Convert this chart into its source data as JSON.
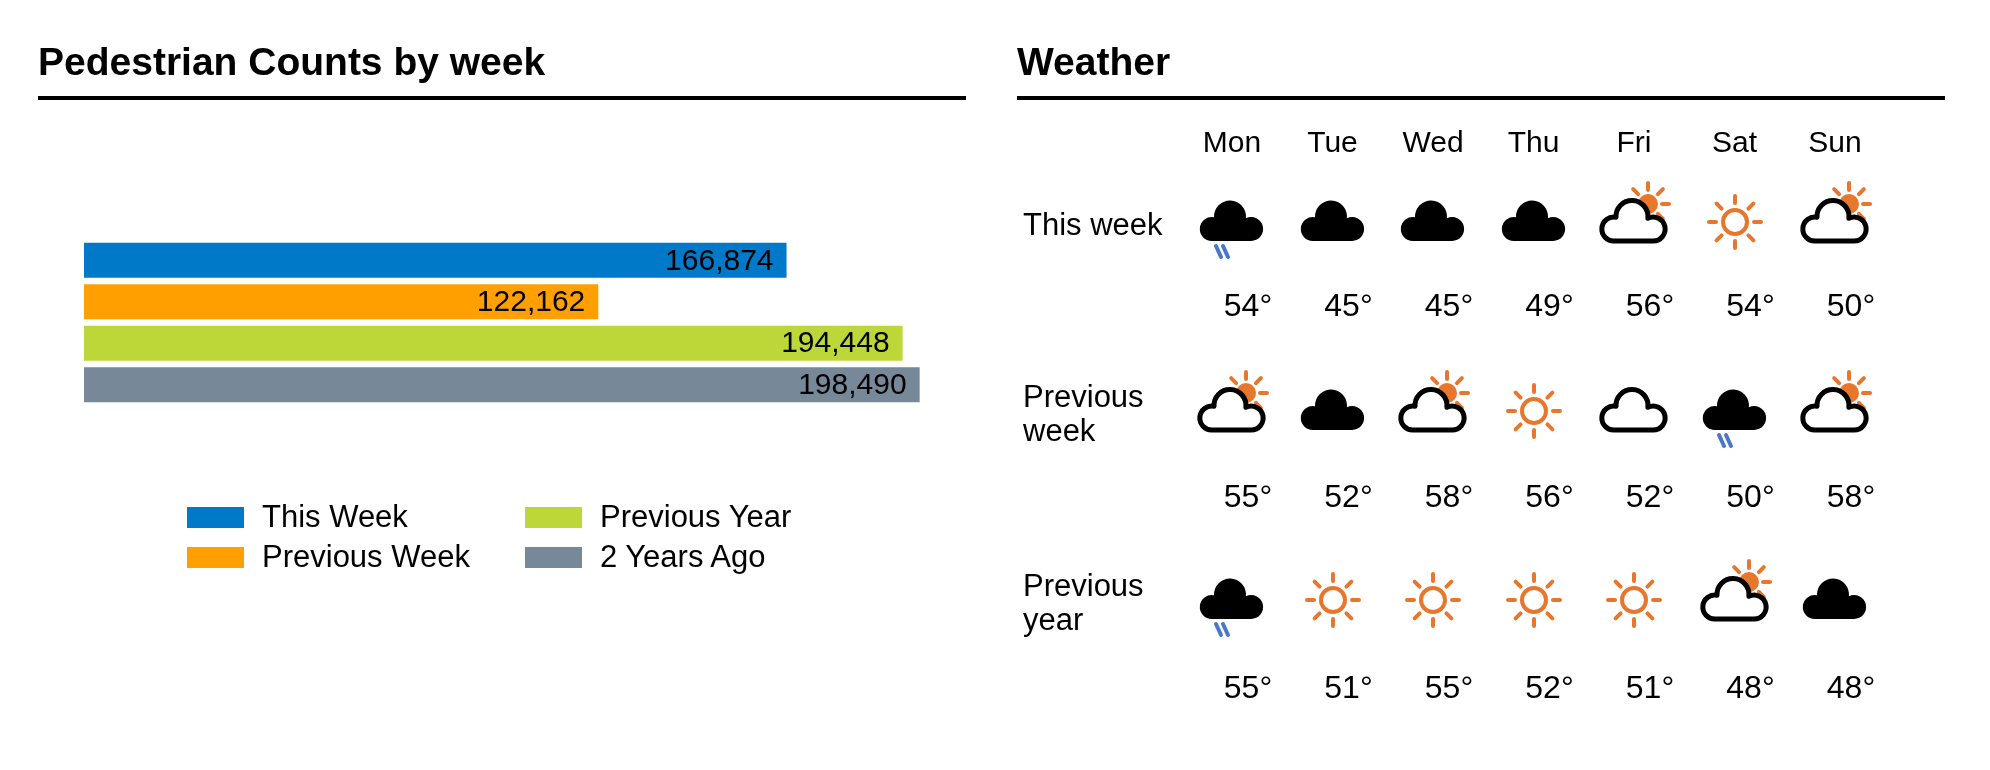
{
  "chart_data": [
    {
      "type": "bar",
      "title": "Pedestrian Counts by week",
      "orientation": "horizontal",
      "categories": [
        null
      ],
      "tick_labels": false,
      "legend": "bottom",
      "series": [
        {
          "name": "This Week",
          "color": "#0079c8",
          "values": [
            166874
          ],
          "value_labels": [
            "166,874"
          ]
        },
        {
          "name": "Previous Week",
          "color": "#ffa000",
          "values": [
            122162
          ],
          "value_labels": [
            "122,162"
          ]
        },
        {
          "name": "Previous Year",
          "color": "#bdd638",
          "values": [
            194448
          ],
          "value_labels": [
            "194,448"
          ]
        },
        {
          "name": "2 Years Ago",
          "color": "#778899",
          "values": [
            198490
          ],
          "value_labels": [
            "198,490"
          ]
        }
      ]
    },
    {
      "type": "other",
      "title": "Weather",
      "categories": [
        "Mon",
        "Tue",
        "Wed",
        "Thu",
        "Fri",
        "Sat",
        "Sun"
      ],
      "y_categories": [
        "This week",
        "Previous week",
        "Previous year"
      ],
      "cell_labels": [
        [
          "54°",
          "45°",
          "45°",
          "49°",
          "56°",
          "54°",
          "50°"
        ],
        [
          "55°",
          "52°",
          "58°",
          "56°",
          "52°",
          "50°",
          "58°"
        ],
        [
          "55°",
          "51°",
          "55°",
          "52°",
          "51°",
          "48°",
          "48°"
        ]
      ]
    }
  ]
}
